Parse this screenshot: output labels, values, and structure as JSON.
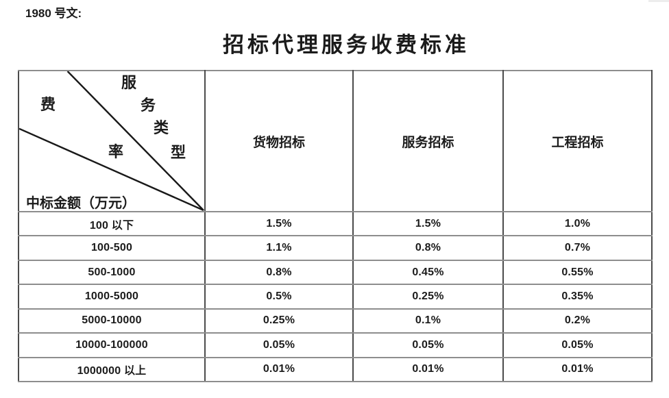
{
  "doc": {
    "ref_label": "1980 号文:",
    "title": "招标代理服务收费标准"
  },
  "table": {
    "corner_chars": [
      "服",
      "务",
      "类",
      "型",
      "费",
      "率"
    ],
    "corner": {
      "diagonal_label_top": "服务类型",
      "diagonal_label_left": "费率",
      "bottom_label": "中标金额（万元）"
    },
    "columns": [
      "货物招标",
      "服务招标",
      "工程招标"
    ],
    "rows": [
      {
        "amount": "100 以下",
        "values": [
          "1.5%",
          "1.5%",
          "1.0%"
        ]
      },
      {
        "amount": "100-500",
        "values": [
          "1.1%",
          "0.8%",
          "0.7%"
        ]
      },
      {
        "amount": "500-1000",
        "values": [
          "0.8%",
          "0.45%",
          "0.55%"
        ]
      },
      {
        "amount": "1000-5000",
        "values": [
          "0.5%",
          "0.25%",
          "0.35%"
        ]
      },
      {
        "amount": "5000-10000",
        "values": [
          "0.25%",
          "0.1%",
          "0.2%"
        ]
      },
      {
        "amount": "10000-100000",
        "values": [
          "0.05%",
          "0.05%",
          "0.05%"
        ]
      },
      {
        "amount": "1000000 以上",
        "values": [
          "0.01%",
          "0.01%",
          "0.01%"
        ]
      }
    ]
  },
  "colors": {
    "text": "#1b1b1b",
    "horizontal_rule": "#8d8d8d",
    "vertical_rule": "#4b4b4b",
    "outer_border": "#7e7e7e",
    "diagonal_line": "#191919",
    "background": "#ffffff"
  }
}
